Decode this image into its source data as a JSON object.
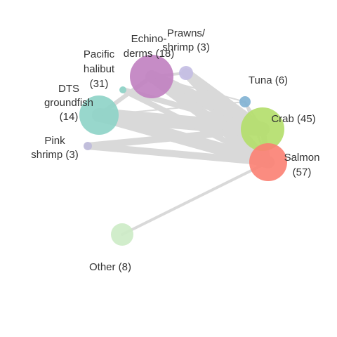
{
  "network": {
    "nodes": [
      {
        "id": "echinoderms",
        "label_lines": [
          "Echino-",
          "derms (18)"
        ],
        "count": 18,
        "color": "#c080c0"
      },
      {
        "id": "prawns",
        "label_lines": [
          "Prawns/",
          "shrimp (3)"
        ],
        "count": 3,
        "color": "#c3bde3"
      },
      {
        "id": "pacific-halibut",
        "label_lines": [
          "Pacific",
          "halibut",
          "(31)"
        ],
        "count": 31,
        "color": "#8dd3c7"
      },
      {
        "id": "dts-groundfish",
        "label_lines": [
          "DTS",
          "groundfish",
          "(14)"
        ],
        "count": 14,
        "color": "#8dd3c7"
      },
      {
        "id": "pink-shrimp",
        "label_lines": [
          "Pink",
          "shrimp (3)"
        ],
        "count": 3,
        "color": "#bebada"
      },
      {
        "id": "tuna",
        "label_lines": [
          "Tuna (6)"
        ],
        "count": 6,
        "color": "#80b1d3"
      },
      {
        "id": "crab",
        "label_lines": [
          "Crab (45)"
        ],
        "count": 45,
        "color": "#b3de69"
      },
      {
        "id": "salmon",
        "label_lines": [
          "Salmon",
          "(57)"
        ],
        "count": 57,
        "color": "#fb8072"
      },
      {
        "id": "other",
        "label_lines": [
          "Other (8)"
        ],
        "count": 8,
        "color": "#ccebc5"
      }
    ],
    "edge_color": "#d9d9d9"
  }
}
